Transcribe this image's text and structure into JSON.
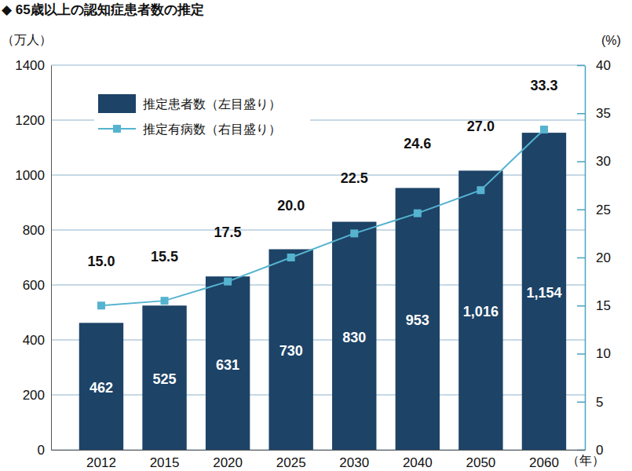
{
  "chart_data": {
    "type": "bar",
    "title": "◆ 65歳以上の認知症患者数の推定",
    "ylabel": "（万人）",
    "y2label": "(%)",
    "xlabel": "（年）",
    "categories": [
      "2012",
      "2015",
      "2020",
      "2025",
      "2030",
      "2040",
      "2050",
      "2060"
    ],
    "series": [
      {
        "name": "推定患者数（左目盛り）",
        "type": "bar",
        "color": "#1d4367",
        "values": [
          462,
          525,
          631,
          730,
          830,
          953,
          1016,
          1154
        ],
        "value_labels": [
          "462",
          "525",
          "631",
          "730",
          "830",
          "953",
          "1,016",
          "1,154"
        ]
      },
      {
        "name": "推定有病数（右目盛り）",
        "type": "line",
        "color": "#55b3cf",
        "marker": "square",
        "axis": "y2",
        "values": [
          15.0,
          15.5,
          17.5,
          20.0,
          22.5,
          24.6,
          27.0,
          33.3
        ],
        "value_labels": [
          "15.0",
          "15.5",
          "17.5",
          "20.0",
          "22.5",
          "24.6",
          "27.0",
          "33.3"
        ]
      }
    ],
    "ylim": [
      0,
      1400
    ],
    "yticks": [
      0,
      200,
      400,
      600,
      800,
      1000,
      1200,
      1400
    ],
    "y2lim": [
      0,
      40
    ],
    "y2ticks": [
      0,
      5,
      10,
      15,
      20,
      25,
      30,
      35,
      40
    ],
    "grid": true,
    "legend": "top-left",
    "data_labels": true
  }
}
